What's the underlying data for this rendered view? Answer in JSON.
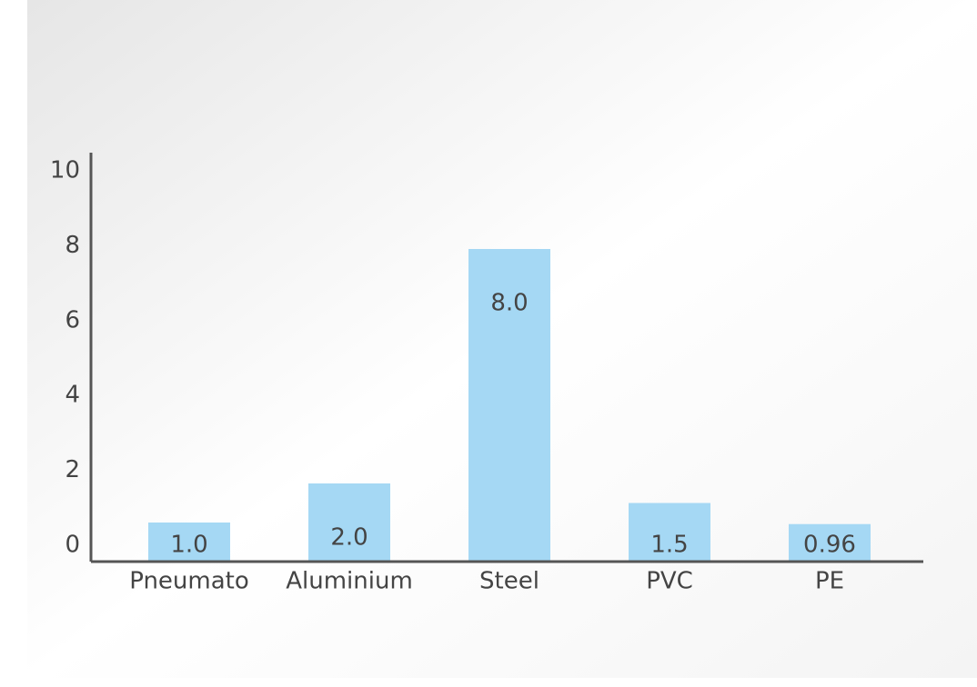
{
  "chart_data": {
    "type": "bar",
    "categories": [
      "Pneumato",
      "Aluminium",
      "Steel",
      "PVC",
      "PE"
    ],
    "values": [
      1.0,
      2.0,
      8.0,
      1.5,
      0.96
    ],
    "value_labels": [
      "1.0",
      "2.0",
      "8.0",
      "1.5",
      "0.96"
    ],
    "color": "#a5d8f4",
    "ylim": [
      0,
      10
    ],
    "yticks": [
      0,
      2,
      4,
      6,
      8,
      10
    ],
    "grid": false
  }
}
